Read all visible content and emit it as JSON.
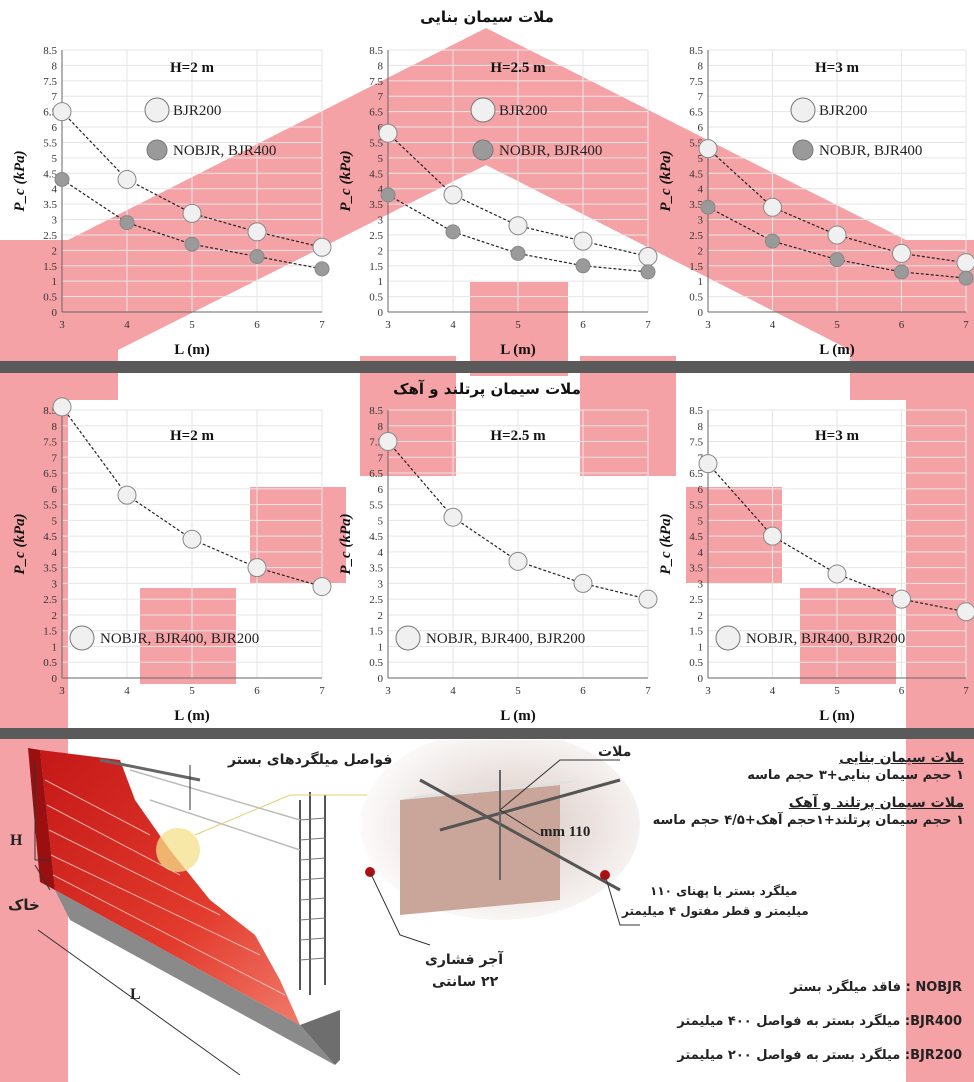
{
  "page_title_top": "ملات سیمان بنایی",
  "page_title_middle": "ملات سیمان پرتلند و آهک",
  "colors": {
    "light_marker": "#f0f0f0",
    "dark_marker": "#9a9a9a",
    "watermark": "#e8222a",
    "band": "#5a5a5a"
  },
  "chart_data": [
    {
      "type": "scatter",
      "title": "H=2 m",
      "xlabel": "L (m)",
      "ylabel": "P_c (kPa)",
      "xlim": [
        3,
        7
      ],
      "ylim": [
        0,
        8.5
      ],
      "x": [
        3,
        4,
        5,
        6,
        7
      ],
      "series": [
        {
          "name": "BJR200",
          "marker": "light",
          "values": [
            6.5,
            4.3,
            3.2,
            2.6,
            2.1
          ]
        },
        {
          "name": "NOBJR, BJR400",
          "marker": "dark",
          "values": [
            4.3,
            2.9,
            2.2,
            1.8,
            1.4
          ]
        }
      ]
    },
    {
      "type": "scatter",
      "title": "H=2.5 m",
      "xlabel": "L (m)",
      "ylabel": "P_c (kPa)",
      "xlim": [
        3,
        7
      ],
      "ylim": [
        0,
        8.5
      ],
      "x": [
        3,
        4,
        5,
        6,
        7
      ],
      "series": [
        {
          "name": "BJR200",
          "marker": "light",
          "values": [
            5.8,
            3.8,
            2.8,
            2.3,
            1.8
          ]
        },
        {
          "name": "NOBJR, BJR400",
          "marker": "dark",
          "values": [
            3.8,
            2.6,
            1.9,
            1.5,
            1.3
          ]
        }
      ]
    },
    {
      "type": "scatter",
      "title": "H=3 m",
      "xlabel": "L (m)",
      "ylabel": "P_c (kPa)",
      "xlim": [
        3,
        7
      ],
      "ylim": [
        0,
        8.5
      ],
      "x": [
        3,
        4,
        5,
        6,
        7
      ],
      "series": [
        {
          "name": "BJR200",
          "marker": "light",
          "values": [
            5.3,
            3.4,
            2.5,
            1.9,
            1.6
          ]
        },
        {
          "name": "NOBJR, BJR400",
          "marker": "dark",
          "values": [
            3.4,
            2.3,
            1.7,
            1.3,
            1.1
          ]
        }
      ]
    },
    {
      "type": "scatter",
      "title": "H=2 m",
      "xlabel": "L (m)",
      "ylabel": "P_c (kPa)",
      "xlim": [
        3,
        7
      ],
      "ylim": [
        0,
        8.5
      ],
      "x": [
        3,
        4,
        5,
        6,
        7
      ],
      "series": [
        {
          "name": "NOBJR, BJR400, BJR200",
          "marker": "light",
          "values": [
            8.6,
            5.8,
            4.4,
            3.5,
            2.9
          ]
        }
      ]
    },
    {
      "type": "scatter",
      "title": "H=2.5 m",
      "xlabel": "L (m)",
      "ylabel": "P_c (kPa)",
      "xlim": [
        3,
        7
      ],
      "ylim": [
        0,
        8.5
      ],
      "x": [
        3,
        4,
        5,
        6,
        7
      ],
      "series": [
        {
          "name": "NOBJR, BJR400, BJR200",
          "marker": "light",
          "values": [
            7.5,
            5.1,
            3.7,
            3.0,
            2.5
          ]
        }
      ]
    },
    {
      "type": "scatter",
      "title": "H=3 m",
      "xlabel": "L (m)",
      "ylabel": "P_c (kPa)",
      "xlim": [
        3,
        7
      ],
      "ylim": [
        0,
        8.5
      ],
      "x": [
        3,
        4,
        5,
        6,
        7
      ],
      "series": [
        {
          "name": "NOBJR, BJR400, BJR200",
          "marker": "light",
          "values": [
            6.8,
            4.5,
            3.3,
            2.5,
            2.1
          ]
        }
      ]
    }
  ],
  "diagram": {
    "label_H": "H",
    "label_soil": "خاک",
    "label_L": "L",
    "label_bed_spacing": "فواصل میلگردهای بستر",
    "label_mortar": "ملات",
    "label_width": "110 mm",
    "label_brick_1": "آجر فشاری",
    "label_brick_2": "۲۲ سانتی",
    "label_rebar_1": "میلگرد بستر با پهنای ۱۱۰",
    "label_rebar_2": "میلیمتر و قطر مفتول ۴ میلیمتر"
  },
  "legend_text": {
    "masonry_title": "ملات سیمان بنایی",
    "masonry_mix": "۱ حجم سیمان بنایی+۳ حجم ماسه",
    "portland_title": "ملات سیمان پرتلند و آهک",
    "portland_mix": "۱ حجم سیمان پرتلند+۱حجم آهک+۴/۵ حجم ماسه",
    "nobjr": "NOBJR : فاقد میلگرد بستر",
    "bjr400": "BJR400: میلگرد بستر به فواصل ۴۰۰ میلیمتر",
    "bjr200": "BJR200: میلگرد بستر به فواصل ۲۰۰ میلیمتر"
  }
}
